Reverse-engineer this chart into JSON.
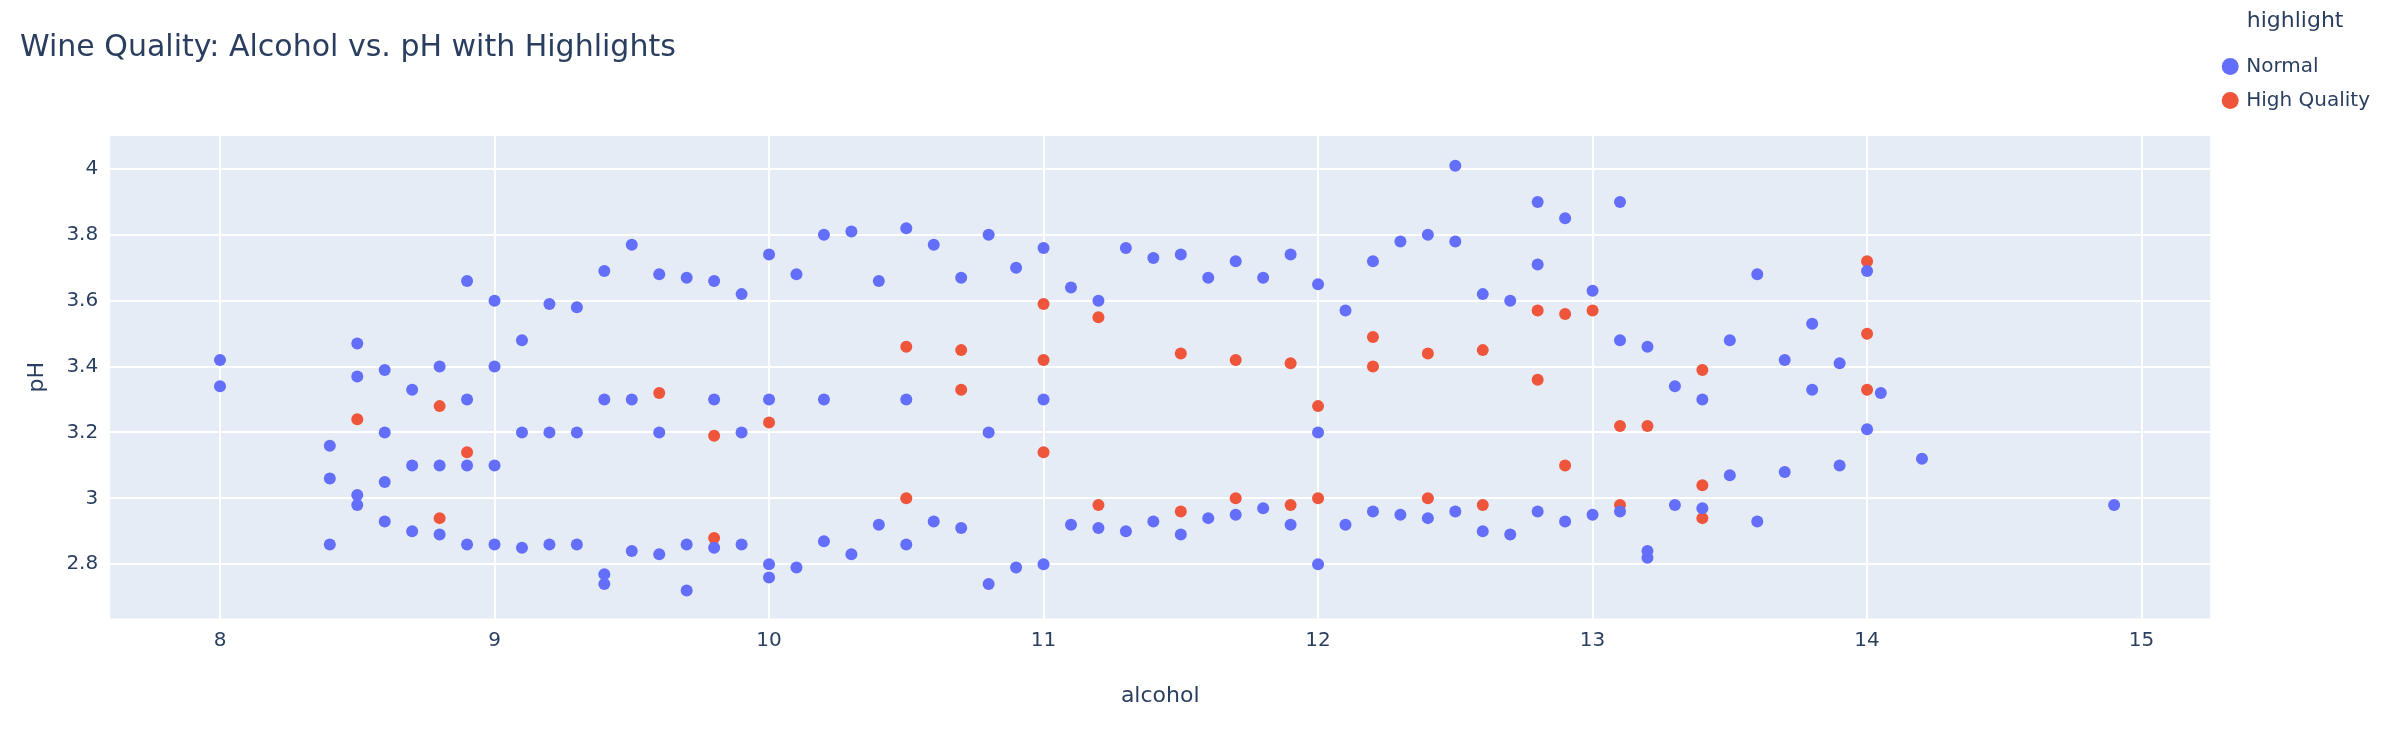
{
  "chart_data": {
    "type": "scatter",
    "title": "Wine Quality: Alcohol vs. pH with Highlights",
    "xlabel": "alcohol",
    "ylabel": "pH",
    "legend_title": "highlight",
    "xlim": [
      7.6,
      15.25
    ],
    "xticks": [
      8,
      9,
      10,
      11,
      12,
      13,
      14,
      15
    ],
    "ylim": [
      2.635,
      4.1
    ],
    "yticks": [
      2.8,
      3,
      3.2,
      3.4,
      3.6,
      3.8,
      4
    ],
    "grid": true,
    "legend": "top right",
    "marker": "circle",
    "series": [
      {
        "name": "Normal",
        "color": "#636efa",
        "x": [
          8,
          8,
          8.4,
          8.4,
          8.4,
          8.5,
          8.5,
          8.5,
          8.5,
          8.6,
          8.6,
          8.6,
          8.6,
          8.7,
          8.7,
          8.7,
          8.8,
          8.8,
          8.8,
          8.9,
          8.9,
          8.9,
          8.9,
          9,
          9,
          9,
          9,
          9.1,
          9.1,
          9.1,
          9.2,
          9.2,
          9.2,
          9.3,
          9.3,
          9.3,
          9.4,
          9.4,
          9.4,
          9.4,
          9.5,
          9.5,
          9.5,
          9.6,
          9.6,
          9.6,
          9.7,
          9.7,
          9.7,
          9.8,
          9.8,
          9.8,
          9.9,
          9.9,
          9.9,
          10,
          10,
          10,
          10,
          10.1,
          10.1,
          10.2,
          10.2,
          10.2,
          10.3,
          10.3,
          10.4,
          10.4,
          10.5,
          10.5,
          10.5,
          10.6,
          10.6,
          10.7,
          10.7,
          10.8,
          10.8,
          10.8,
          10.9,
          10.9,
          11,
          11,
          11,
          11.1,
          11.1,
          11.2,
          11.2,
          11.3,
          11.3,
          11.4,
          11.4,
          11.5,
          11.5,
          11.6,
          11.6,
          11.7,
          11.7,
          11.8,
          11.8,
          11.9,
          11.9,
          12,
          12,
          12,
          12.1,
          12.1,
          12.2,
          12.2,
          12.3,
          12.3,
          12.4,
          12.4,
          12.5,
          12.5,
          12.5,
          12.6,
          12.6,
          12.7,
          12.7,
          12.8,
          12.8,
          12.8,
          12.9,
          12.9,
          13,
          13,
          13.1,
          13.1,
          13.1,
          13.2,
          13.2,
          13.2,
          13.3,
          13.3,
          13.4,
          13.4,
          13.5,
          13.5,
          13.6,
          13.6,
          13.7,
          13.7,
          13.8,
          13.8,
          13.9,
          13.9,
          14,
          14,
          14.05,
          14.2,
          14.9
        ],
        "values": [
          3.34,
          3.42,
          2.86,
          3.06,
          3.16,
          2.98,
          3.01,
          3.37,
          3.47,
          2.93,
          3.05,
          3.2,
          3.39,
          2.9,
          3.1,
          3.33,
          2.89,
          3.1,
          3.4,
          2.86,
          3.1,
          3.3,
          3.66,
          2.86,
          3.1,
          3.4,
          3.6,
          2.85,
          3.2,
          3.48,
          2.86,
          3.2,
          3.59,
          2.86,
          3.2,
          3.58,
          2.74,
          2.77,
          3.3,
          3.69,
          2.84,
          3.3,
          3.77,
          2.83,
          3.2,
          3.68,
          2.72,
          2.86,
          3.67,
          2.85,
          3.3,
          3.66,
          2.86,
          3.2,
          3.62,
          2.76,
          2.8,
          3.3,
          3.74,
          2.79,
          3.68,
          2.87,
          3.3,
          3.8,
          2.83,
          3.81,
          2.92,
          3.66,
          2.86,
          3.3,
          3.82,
          2.93,
          3.77,
          2.91,
          3.67,
          2.74,
          3.2,
          3.8,
          2.79,
          3.7,
          2.8,
          3.3,
          3.76,
          2.92,
          3.64,
          2.91,
          3.6,
          2.9,
          3.76,
          2.93,
          3.73,
          2.89,
          3.74,
          2.94,
          3.67,
          2.95,
          3.72,
          2.97,
          3.67,
          2.92,
          3.74,
          2.8,
          3.2,
          3.65,
          2.92,
          3.57,
          2.96,
          3.72,
          2.95,
          3.78,
          2.94,
          3.8,
          2.96,
          3.78,
          4.01,
          2.9,
          3.62,
          2.89,
          3.6,
          2.96,
          3.71,
          3.9,
          2.93,
          3.85,
          2.95,
          3.63,
          2.96,
          3.48,
          3.9,
          2.82,
          2.84,
          3.46,
          2.98,
          3.34,
          2.97,
          3.3,
          3.07,
          3.48,
          2.93,
          3.68,
          3.08,
          3.42,
          3.33,
          3.53,
          3.1,
          3.41,
          3.21,
          3.69,
          3.32,
          3.12,
          2.98
        ]
      },
      {
        "name": "High Quality",
        "color": "#ef553b",
        "x": [
          8.5,
          8.8,
          8.8,
          8.9,
          9.6,
          9.8,
          9.8,
          10,
          10.5,
          10.5,
          10.7,
          10.7,
          11,
          11,
          11,
          11.2,
          11.2,
          11.5,
          11.5,
          11.7,
          11.7,
          11.9,
          11.9,
          12,
          12,
          12.2,
          12.2,
          12.4,
          12.4,
          12.6,
          12.6,
          12.8,
          12.8,
          12.9,
          12.9,
          13,
          13.1,
          13.1,
          13.2,
          13.4,
          13.4,
          13.4,
          14,
          14,
          14
        ],
        "values": [
          3.24,
          2.94,
          3.28,
          3.14,
          3.32,
          2.88,
          3.19,
          3.23,
          3.0,
          3.46,
          3.33,
          3.45,
          3.59,
          3.42,
          3.14,
          2.98,
          3.55,
          2.96,
          3.44,
          3.42,
          3.0,
          2.98,
          3.41,
          3.28,
          3.0,
          3.49,
          3.4,
          3.44,
          3.0,
          3.45,
          2.98,
          3.57,
          3.36,
          3.56,
          3.1,
          3.57,
          2.98,
          3.22,
          3.22,
          2.94,
          3.39,
          3.04,
          3.72,
          3.5,
          3.33
        ]
      }
    ]
  }
}
